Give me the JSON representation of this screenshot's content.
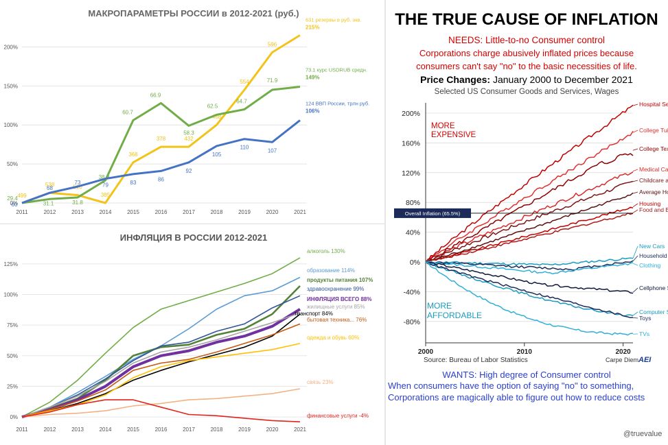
{
  "chart_data": [
    {
      "type": "line",
      "title": "МАКРОПАРАМЕТРЫ  РОССИИ в 2012-2021 (руб.)",
      "x": [
        2011,
        2012,
        2013,
        2014,
        2015,
        2016,
        2017,
        2018,
        2019,
        2020,
        2021
      ],
      "yticks": [
        "0%",
        "50%",
        "100%",
        "150%",
        "200%"
      ],
      "ylim": [
        0,
        225
      ],
      "grid": true,
      "series": [
        {
          "name": "631 резервы в руб. экв.",
          "end_label": "215%",
          "color": "#f2c31a",
          "values": [
            0,
            13,
            10,
            0,
            52,
            72,
            72,
            100,
            145,
            193,
            215
          ],
          "point_labels": [
            "499",
            "538",
            "510",
            "385",
            "368",
            "378",
            "432",
            "468",
            "554",
            "596",
            ""
          ]
        },
        {
          "name": "73.1 курс USDRUB средн.",
          "end_label": "149%",
          "color": "#70ad47",
          "values": [
            0,
            5,
            7,
            29,
            106,
            128,
            99,
            113,
            120,
            145,
            149
          ],
          "point_labels": [
            "29.4",
            "31.1",
            "31.8",
            "38.9",
            "60.7",
            "66.9",
            "58.3",
            "62.5",
            "64.7",
            "71.9",
            ""
          ]
        },
        {
          "name": "124 ВВП России, трлн руб.",
          "end_label": "106%",
          "color": "#4472c4",
          "values": [
            0,
            13,
            21,
            31,
            37,
            41,
            52,
            73,
            82,
            78,
            106
          ],
          "point_labels": [
            "60",
            "68",
            "73",
            "79",
            "83",
            "86",
            "92",
            "105",
            "110",
            "107",
            ""
          ]
        }
      ]
    },
    {
      "type": "line",
      "title": "ИНФЛЯЦИЯ  В РОССИИ 2012-2021",
      "x": [
        2011,
        2012,
        2013,
        2014,
        2015,
        2016,
        2017,
        2018,
        2019,
        2020,
        2021
      ],
      "yticks": [
        "0%",
        "25%",
        "50%",
        "75%",
        "100%",
        "125%"
      ],
      "ylim": [
        -5,
        135
      ],
      "grid": true,
      "series": [
        {
          "name": "алкоголь 130%",
          "color": "#70ad47",
          "values": [
            0,
            12,
            30,
            52,
            73,
            88,
            95,
            102,
            109,
            117,
            130
          ]
        },
        {
          "name": "образование 114%",
          "color": "#5b9bd5",
          "values": [
            0,
            8,
            20,
            33,
            47,
            58,
            72,
            88,
            99,
            103,
            114
          ]
        },
        {
          "name": "продукты питания 107%",
          "color": "#538135",
          "values": [
            0,
            7,
            15,
            30,
            50,
            57,
            59,
            67,
            72,
            84,
            107
          ]
        },
        {
          "name": "здравоохранение 99%",
          "color": "#2f5597",
          "values": [
            0,
            8,
            18,
            31,
            46,
            58,
            61,
            70,
            76,
            89,
            99
          ]
        },
        {
          "name": "ИНФЛЯЦИЯ ВСЕГО 88%",
          "color": "#7030a0",
          "values": [
            0,
            6,
            14,
            25,
            41,
            50,
            54,
            61,
            66,
            74,
            88
          ]
        },
        {
          "name": "жилищные услуги  85%",
          "color": "#a5a5a5",
          "values": [
            0,
            8,
            17,
            29,
            44,
            53,
            57,
            63,
            70,
            77,
            85
          ]
        },
        {
          "name": "транспорт 84%",
          "color": "#000000",
          "values": [
            0,
            5,
            11,
            19,
            30,
            38,
            45,
            51,
            57,
            66,
            84
          ]
        },
        {
          "name": "бытовая техника... 76%",
          "color": "#c55a11",
          "values": [
            0,
            6,
            13,
            22,
            38,
            44,
            47,
            53,
            60,
            67,
            76
          ]
        },
        {
          "name": "одежда и обувь 60%",
          "color": "#ffc000",
          "values": [
            0,
            5,
            10,
            18,
            32,
            41,
            46,
            49,
            52,
            55,
            60
          ]
        },
        {
          "name": "связь 23%",
          "color": "#f4b183",
          "values": [
            0,
            2,
            3,
            5,
            9,
            11,
            14,
            15,
            17,
            19,
            23
          ]
        },
        {
          "name": "финансовые услуги  -4%",
          "color": "#e2231a",
          "values": [
            0,
            4,
            10,
            14,
            14,
            8,
            2,
            1,
            -1,
            -3,
            -4
          ]
        }
      ]
    },
    {
      "type": "line",
      "title": "THE TRUE CAUSE OF INFLATION",
      "needs_lines": [
        "NEEDS: Little-to-no Consumer control",
        "Corporations charge abusively inflated prices because",
        "consumers can't say \"no\" to the basic necessities of life."
      ],
      "subtitle_bold": "Price Changes:",
      "subtitle_rest": " January 2000 to December 2021",
      "subtitle2": "Selected US Consumer Goods and Services, Wages",
      "yticks": [
        "200%",
        "160%",
        "120%",
        "80%",
        "40%",
        "0%",
        "-40%",
        "-80%"
      ],
      "xticks": [
        "2000",
        "2010",
        "2020"
      ],
      "ylim": [
        -100,
        215
      ],
      "xlim": [
        2000,
        2021
      ],
      "more_expensive_lines": [
        "MORE",
        "EXPENSIVE"
      ],
      "more_affordable_lines": [
        "MORE",
        "AFFORDABLE"
      ],
      "overall_inflation_label": "Overall Inflation (65.5%)",
      "overall_inflation_value": 65.5,
      "source": "Source: Bureau of Labor Statistics",
      "credit": "Carpe Diem",
      "credit_logo": "AEI",
      "wants_lines": [
        "WANTS: High degree of Consumer control",
        "When consumers have the option of saying \"no\" to something,",
        "Corporations are magically able to figure out how to reduce costs"
      ],
      "watermark": "@truevalue",
      "series": [
        {
          "name": "Hospital Services",
          "color": "#c00000",
          "end": 210
        },
        {
          "name": "College Tuition and Fees",
          "color": "#e03030",
          "end": 174
        },
        {
          "name": "College Textbooks",
          "color": "#8b0000",
          "end": 150
        },
        {
          "name": "Medical Care Services",
          "color": "#d62c2c",
          "end": 122
        },
        {
          "name": "Childcare and Nursery School",
          "color": "#7a1515",
          "end": 108
        },
        {
          "name": "Average Hourly Wages",
          "color": "#5a0f0f",
          "end": 92
        },
        {
          "name": "Housing",
          "color": "#c00000",
          "end": 74
        },
        {
          "name": "Food and Beverages",
          "color": "#ad1a1a",
          "end": 66
        },
        {
          "name": "New Cars",
          "color": "#1a9bc0",
          "end": 5
        },
        {
          "name": "Household Furnishings",
          "color": "#1c2a5a",
          "end": 1
        },
        {
          "name": "Clothing",
          "color": "#2fb0d8",
          "end": -2
        },
        {
          "name": "Cellphone Services",
          "color": "#101840",
          "end": -41
        },
        {
          "name": "Computer Software",
          "color": "#1a9bc0",
          "end": -72
        },
        {
          "name": "Toys",
          "color": "#1c2a5a",
          "end": -75
        },
        {
          "name": "TVs",
          "color": "#2fb0d8",
          "end": -97
        }
      ]
    }
  ]
}
